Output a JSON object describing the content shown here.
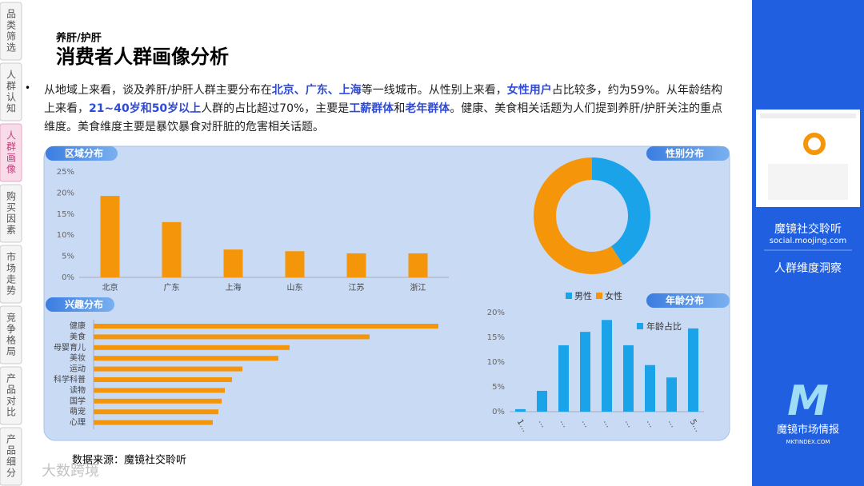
{
  "sidebar": {
    "tabs": [
      "品类筛选",
      "人群认知",
      "人群画像",
      "购买因素",
      "市场走势",
      "竞争格局",
      "产品对比",
      "产品细分"
    ],
    "active": 2
  },
  "header": {
    "subtitle": "养肝/护肝",
    "title": "消费者人群画像分析"
  },
  "summary": [
    {
      "text": "从地域上来看，谈及养肝/护肝人群主要分布在",
      "bold": false
    },
    {
      "text": "北京、广东、上海",
      "bold": true
    },
    {
      "text": "等一线城市。从性别上来看，",
      "bold": false
    },
    {
      "text": "女性用户",
      "bold": true
    },
    {
      "text": "占比较多，约为59%。从年龄结构上来看，",
      "bold": false
    },
    {
      "text": "21~40岁和50岁以上",
      "bold": true
    },
    {
      "text": "人群的占比超过70%，主要是",
      "bold": false
    },
    {
      "text": "工薪群体",
      "bold": true
    },
    {
      "text": "和",
      "bold": false
    },
    {
      "text": "老年群体",
      "bold": true
    },
    {
      "text": "。健康、美食相关话题为人们提到养肝/护肝关注的重点维度。美食维度主要是暴饮暴食对肝脏的危害相关话题。",
      "bold": false
    }
  ],
  "chart_data": [
    {
      "type": "bar",
      "title": "区域分布",
      "categories": [
        "北京",
        "广东",
        "上海",
        "山东",
        "江苏",
        "浙江"
      ],
      "values": [
        19.3,
        13.1,
        6.6,
        6.2,
        5.7,
        5.7
      ],
      "color": "#f5960a",
      "ylim": [
        0,
        25
      ],
      "yticks": [
        {
          "value": 0,
          "label": "0%"
        },
        {
          "value": 5,
          "label": "5%"
        },
        {
          "value": 10,
          "label": "10%"
        },
        {
          "value": 15,
          "label": "15%"
        },
        {
          "value": 20,
          "label": "20%"
        },
        {
          "value": 25,
          "label": "25%"
        }
      ]
    },
    {
      "type": "donut",
      "title": "性别分布",
      "categories": [
        "男性",
        "女性"
      ],
      "values": [
        41,
        59
      ],
      "colors": [
        "#1aa3e8",
        "#f5960a"
      ]
    },
    {
      "type": "barh",
      "title": "兴趣分布",
      "categories": [
        "健康",
        "美食",
        "母婴育儿",
        "美妆",
        "运动",
        "科学科普",
        "读物",
        "国学",
        "萌宠",
        "心理"
      ],
      "values": [
        43.1,
        34.5,
        24.5,
        23.1,
        18.6,
        17.3,
        16.4,
        16.0,
        15.6,
        14.9
      ],
      "color": "#f5960a"
    },
    {
      "type": "bar",
      "title": "年龄分布",
      "categories": [
        "1…",
        "…",
        "…",
        "…",
        "…",
        "…",
        "…",
        "…",
        "5…"
      ],
      "series": [
        {
          "name": "年龄占比",
          "color": "#1aa3e8",
          "values": [
            0.5,
            4.2,
            13.4,
            16.1,
            18.5,
            13.4,
            9.4,
            6.9,
            16.8
          ]
        }
      ],
      "ylim": [
        0,
        20
      ],
      "yticks": [
        {
          "value": 0,
          "label": "0%"
        },
        {
          "value": 5,
          "label": "5%"
        },
        {
          "value": 10,
          "label": "10%"
        },
        {
          "value": 15,
          "label": "15%"
        },
        {
          "value": 20,
          "label": "20%"
        }
      ]
    }
  ],
  "source": "数据来源：魔镜社交聆听",
  "watermark": "大数跨境",
  "side_panel": {
    "brand": "魔镜社交聆听",
    "url": "social.moojing.com",
    "topic": "人群维度洞察",
    "logo_name": "魔镜市场情报",
    "logo_url": "MKTINDEX.COM"
  }
}
